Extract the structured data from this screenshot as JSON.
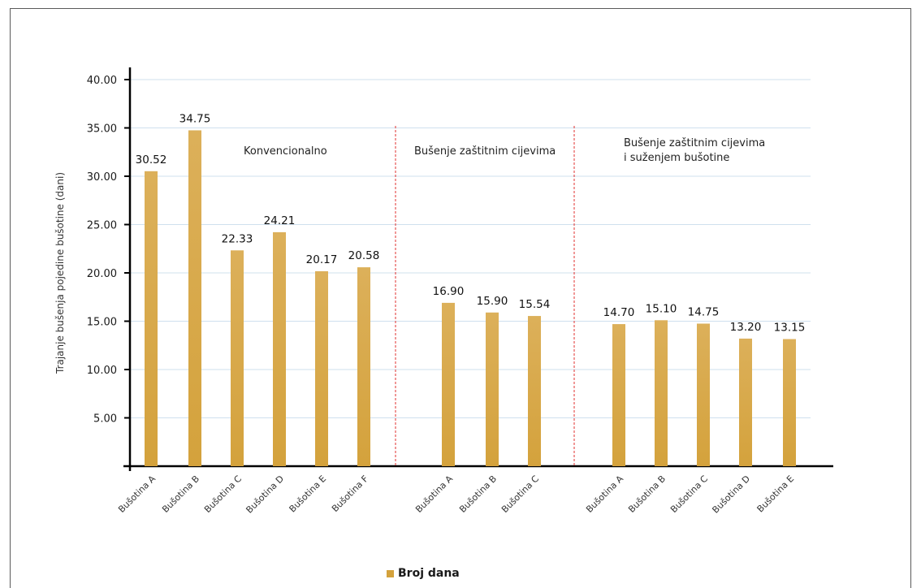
{
  "chart_data": {
    "type": "bar",
    "title": "",
    "ylabel": "Trajanje bušenja pojedine bušotine (dani)",
    "xlabel": "",
    "ylim": [
      0,
      40
    ],
    "yticks": [
      "5.00",
      "10.00",
      "15.00",
      "20.00",
      "25.00",
      "30.00",
      "35.00",
      "40.00"
    ],
    "grid": true,
    "legend_position": "bottom",
    "bar_color": "#d4a23c",
    "divider_color": "#e0312f",
    "groups": [
      {
        "label": [
          "Konvencionalno"
        ],
        "categories": [
          "Bušotina A",
          "Bušotina B",
          "Bušotina C",
          "Bušotina D",
          "Bušotina E",
          "Bušotina F"
        ],
        "values": [
          30.52,
          34.75,
          22.33,
          24.21,
          20.17,
          20.58
        ],
        "value_labels": [
          "30.52",
          "34.75",
          "22.33",
          "24.21",
          "20.17",
          "20.58"
        ]
      },
      {
        "label": [
          "Bušenje zaštitnim cijevima"
        ],
        "categories": [
          "Bušotina A",
          "Bušotina B",
          "Bušotina C"
        ],
        "values": [
          16.9,
          15.9,
          15.54
        ],
        "value_labels": [
          "16.90",
          "15.90",
          "15.54"
        ]
      },
      {
        "label": [
          "Bušenje zaštitnim cijevima",
          "i suženjem bušotine"
        ],
        "categories": [
          "Bušotina A",
          "Bušotina B",
          "Bušotina C",
          "Bušotina D",
          "Bušotina E"
        ],
        "values": [
          14.7,
          15.1,
          14.75,
          13.2,
          13.15
        ],
        "value_labels": [
          "14.70",
          "15.10",
          "14.75",
          "13.20",
          "13.15"
        ]
      }
    ],
    "series": [
      {
        "name": "Broj dana"
      }
    ]
  },
  "legend": {
    "label": "Broj dana"
  }
}
